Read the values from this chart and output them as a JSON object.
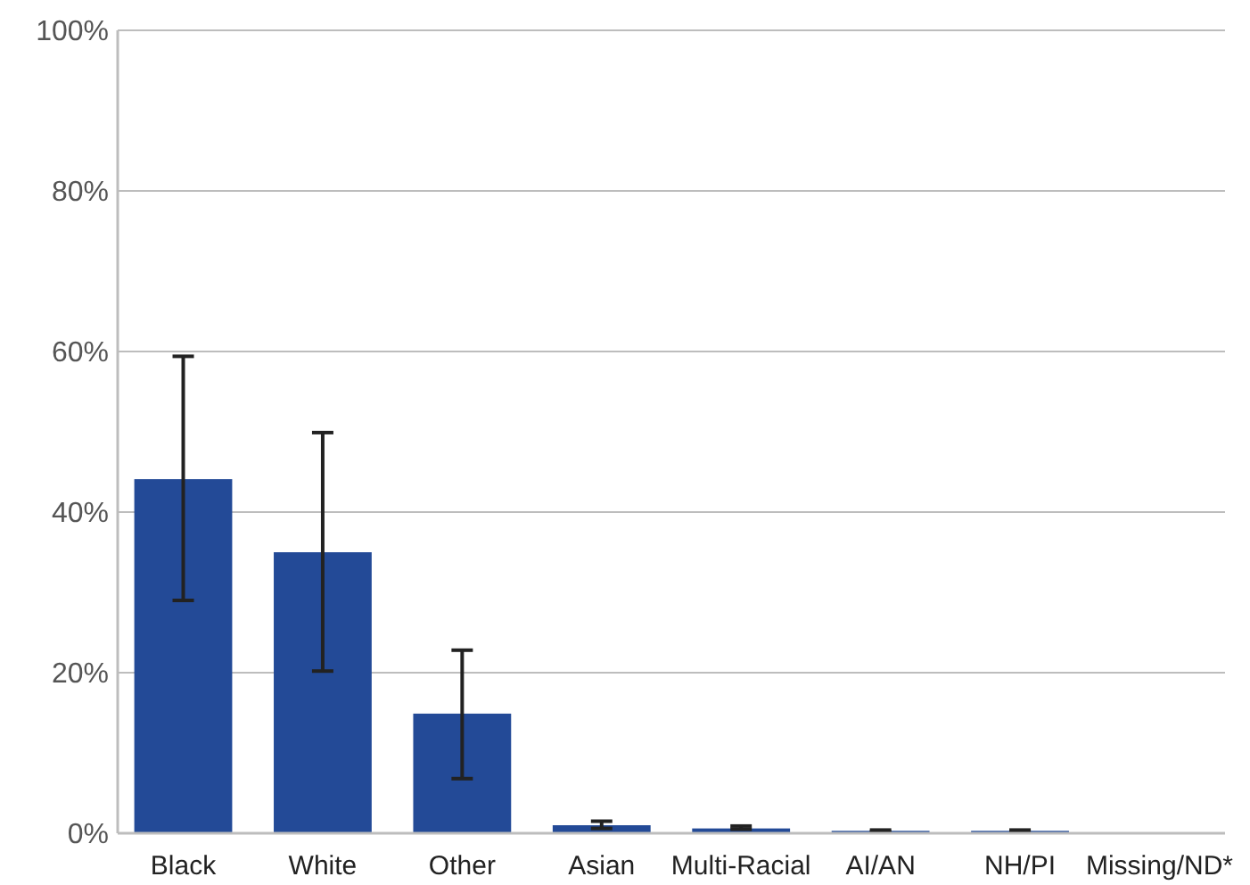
{
  "chart_data": {
    "type": "bar",
    "categories": [
      "Black",
      "White",
      "Other",
      "Asian",
      "Multi-Racial",
      "AI/AN",
      "NH/PI",
      "Missing/ND*"
    ],
    "values": [
      44.1,
      35,
      14.9,
      1,
      0.6,
      0.3,
      0.3,
      0
    ],
    "errors": [
      [
        29,
        59.4
      ],
      [
        20.2,
        49.9
      ],
      [
        6.8,
        22.8
      ],
      [
        0.6,
        1.5
      ],
      [
        0.5,
        0.9
      ],
      [
        0.2,
        0.4
      ],
      [
        0.2,
        0.4
      ],
      null
    ],
    "color": "#234a97",
    "ylim": [
      0,
      100
    ],
    "yticks": [
      {
        "value": 0,
        "label": "0%"
      },
      {
        "value": 20,
        "label": "20%"
      },
      {
        "value": 40,
        "label": "40%"
      },
      {
        "value": 60,
        "label": "60%"
      },
      {
        "value": 80,
        "label": "80%"
      },
      {
        "value": 100,
        "label": "100%"
      }
    ],
    "grid": "y"
  }
}
